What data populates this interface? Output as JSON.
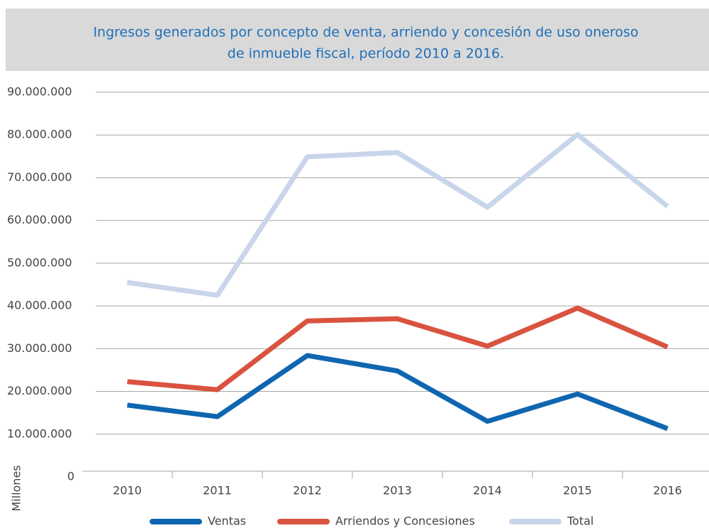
{
  "chart_data": {
    "type": "line",
    "title": [
      "Ingresos generados por concepto de venta, arriendo y concesión de uso oneroso",
      "de inmueble fiscal, período 2010 a 2016."
    ],
    "y_label": "Millones",
    "categories": [
      "2010",
      "2011",
      "2012",
      "2013",
      "2014",
      "2015",
      "2016"
    ],
    "series": [
      {
        "name": "Ventas",
        "color": "#0f66b0",
        "values": [
          16800000,
          14100000,
          28400000,
          24800000,
          13000000,
          19400000,
          11300000
        ]
      },
      {
        "name": "Arriendos y Concesiones",
        "color": "#d9533f",
        "values": [
          22300000,
          20400000,
          36500000,
          37000000,
          30600000,
          39500000,
          30400000
        ]
      },
      {
        "name": "Total",
        "color": "#c8d5ea",
        "values": [
          45500000,
          42500000,
          74900000,
          75900000,
          63100000,
          80100000,
          63300000
        ]
      }
    ],
    "ylim": [
      0,
      90000000
    ],
    "yticks": [
      0,
      {
        "value": 10000000,
        "label": "10.000.000"
      },
      {
        "value": 20000000,
        "label": "20.000.000"
      },
      {
        "value": 30000000,
        "label": "30.000.000"
      },
      {
        "value": 40000000,
        "label": "40.000.000"
      },
      {
        "value": 50000000,
        "label": "50.000.000"
      },
      {
        "value": 60000000,
        "label": "60.000.000"
      },
      {
        "value": 70000000,
        "label": "70.000.000"
      },
      {
        "value": 80000000,
        "label": "80.000.000"
      },
      {
        "value": 90000000,
        "label": "90.000.000"
      }
    ],
    "grid": true,
    "legend": "bottom"
  }
}
